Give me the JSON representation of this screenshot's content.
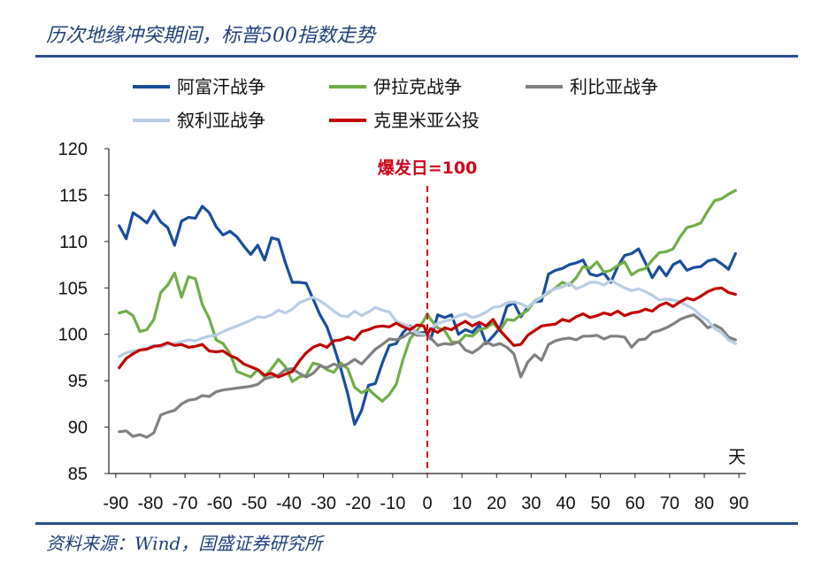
{
  "header": {
    "title": "历次地缘冲突期间，标普500指数走势"
  },
  "footer": {
    "source": "资料来源：Wind，国盛证券研究所"
  },
  "chart_data": {
    "type": "line",
    "title": "历次地缘冲突期间，标普500指数走势",
    "xlabel": "天",
    "ylabel": "",
    "xlim": [
      -92,
      92
    ],
    "ylim": [
      85,
      120
    ],
    "xticks": [
      -90,
      -80,
      -70,
      -60,
      -50,
      -40,
      -30,
      -20,
      -10,
      0,
      10,
      20,
      30,
      40,
      50,
      60,
      70,
      80,
      90
    ],
    "yticks": [
      85,
      90,
      95,
      100,
      105,
      110,
      115,
      120
    ],
    "annotation": {
      "text": "爆发日=100",
      "x": 0
    },
    "legend_position": "top",
    "series": [
      {
        "name": "阿富汗战争",
        "color": "#1a4d9c",
        "x": [
          -89,
          -87,
          -85,
          -83,
          -81,
          -79,
          -77,
          -75,
          -73,
          -71,
          -69,
          -67,
          -65,
          -63,
          -61,
          -59,
          -57,
          -55,
          -53,
          -51,
          -49,
          -47,
          -45,
          -43,
          -41,
          -39,
          -37,
          -35,
          -33,
          -31,
          -29,
          -27,
          -25,
          -23,
          -21,
          -19,
          -17,
          -15,
          -13,
          -11,
          -9,
          -7,
          -5,
          -3,
          -1,
          0,
          1,
          3,
          5,
          7,
          9,
          11,
          13,
          15,
          17,
          19,
          21,
          23,
          25,
          27,
          29,
          31,
          33,
          35,
          37,
          39,
          41,
          43,
          45,
          47,
          49,
          51,
          53,
          55,
          57,
          59,
          61,
          63,
          65,
          67,
          69,
          71,
          73,
          75,
          77,
          79,
          81,
          83,
          85,
          87,
          89
        ],
        "y": [
          111.7,
          110.3,
          113.1,
          112.6,
          112.0,
          113.3,
          112.1,
          111.5,
          109.6,
          112.2,
          112.6,
          112.5,
          113.8,
          113.1,
          111.6,
          110.7,
          111.1,
          110.5,
          109.5,
          108.6,
          109.6,
          108.0,
          110.4,
          110.2,
          107.7,
          105.6,
          105.6,
          105.5,
          103.8,
          102.1,
          100.8,
          98.7,
          96.3,
          93.6,
          90.3,
          91.8,
          94.5,
          94.7,
          96.9,
          98.8,
          99.0,
          100.2,
          100.9,
          100.1,
          100.2,
          100.0,
          99.5,
          102.1,
          101.8,
          102.1,
          100.0,
          100.5,
          100.2,
          101.0,
          99.0,
          99.8,
          100.7,
          103.0,
          103.4,
          101.9,
          102.9,
          103.5,
          103.6,
          106.5,
          106.9,
          107.1,
          107.5,
          107.7,
          108.0,
          106.5,
          106.3,
          106.6,
          105.6,
          107.3,
          108.5,
          108.7,
          109.2,
          107.7,
          106.1,
          107.3,
          106.3,
          107.5,
          107.9,
          106.9,
          107.2,
          107.3,
          107.9,
          108.1,
          107.6,
          107.0,
          108.7
        ]
      },
      {
        "name": "伊拉克战争",
        "color": "#70ad47",
        "x": [
          -89,
          -87,
          -85,
          -83,
          -81,
          -79,
          -77,
          -75,
          -73,
          -71,
          -69,
          -67,
          -65,
          -63,
          -61,
          -59,
          -57,
          -55,
          -53,
          -51,
          -49,
          -47,
          -45,
          -43,
          -41,
          -39,
          -37,
          -35,
          -33,
          -31,
          -29,
          -27,
          -25,
          -23,
          -21,
          -19,
          -17,
          -15,
          -13,
          -11,
          -9,
          -7,
          -5,
          -3,
          -1,
          0,
          1,
          3,
          5,
          7,
          9,
          11,
          13,
          15,
          17,
          19,
          21,
          23,
          25,
          27,
          29,
          31,
          33,
          35,
          37,
          39,
          41,
          43,
          45,
          47,
          49,
          51,
          53,
          55,
          57,
          59,
          61,
          63,
          65,
          67,
          69,
          71,
          73,
          75,
          77,
          79,
          81,
          83,
          85,
          87,
          89
        ],
        "y": [
          102.3,
          102.5,
          102.0,
          100.3,
          100.5,
          101.6,
          104.5,
          105.3,
          106.6,
          104.0,
          106.2,
          106.0,
          103.2,
          101.7,
          99.4,
          99.0,
          97.9,
          96.0,
          95.7,
          95.4,
          96.2,
          95.4,
          96.3,
          97.3,
          96.5,
          94.9,
          95.4,
          95.6,
          96.9,
          96.7,
          96.2,
          95.9,
          96.9,
          96.3,
          94.3,
          93.7,
          94.1,
          93.4,
          92.8,
          93.5,
          94.6,
          97.3,
          99.5,
          100.4,
          101.5,
          102.2,
          101.6,
          100.7,
          100.4,
          99.2,
          99.1,
          99.9,
          99.8,
          100.5,
          100.7,
          101.2,
          100.4,
          101.6,
          101.5,
          102.1,
          102.6,
          103.6,
          104.0,
          104.5,
          105.0,
          105.6,
          105.3,
          106.1,
          107.3,
          107.1,
          107.8,
          106.7,
          106.9,
          107.4,
          107.8,
          106.4,
          106.9,
          107.1,
          108.0,
          108.8,
          108.9,
          109.2,
          110.5,
          111.5,
          111.7,
          112.0,
          113.3,
          114.4,
          114.6,
          115.1,
          115.5
        ]
      },
      {
        "name": "利比亚战争",
        "color": "#808080",
        "x": [
          -89,
          -87,
          -85,
          -83,
          -81,
          -79,
          -77,
          -75,
          -73,
          -71,
          -69,
          -67,
          -65,
          -63,
          -61,
          -59,
          -57,
          -55,
          -53,
          -51,
          -49,
          -47,
          -45,
          -43,
          -41,
          -39,
          -37,
          -35,
          -33,
          -31,
          -29,
          -27,
          -25,
          -23,
          -21,
          -19,
          -17,
          -15,
          -13,
          -11,
          -9,
          -7,
          -5,
          -3,
          -1,
          0,
          1,
          3,
          5,
          7,
          9,
          11,
          13,
          15,
          17,
          19,
          21,
          23,
          25,
          27,
          29,
          31,
          33,
          35,
          37,
          39,
          41,
          43,
          45,
          47,
          49,
          51,
          53,
          55,
          57,
          59,
          61,
          63,
          65,
          67,
          69,
          71,
          73,
          75,
          77,
          79,
          81,
          83,
          85,
          87,
          89
        ],
        "y": [
          89.5,
          89.6,
          89.0,
          89.2,
          88.9,
          89.4,
          91.3,
          91.6,
          91.8,
          92.5,
          92.9,
          93.0,
          93.4,
          93.3,
          93.8,
          94.0,
          94.1,
          94.2,
          94.3,
          94.4,
          94.6,
          95.2,
          95.4,
          95.6,
          96.2,
          96.3,
          95.8,
          95.4,
          95.8,
          96.6,
          96.4,
          96.8,
          96.5,
          96.8,
          97.3,
          96.8,
          97.6,
          98.4,
          98.9,
          99.5,
          99.4,
          99.7,
          100.2,
          99.9,
          99.9,
          100.0,
          99.6,
          98.8,
          99.0,
          98.9,
          99.2,
          98.3,
          98.0,
          98.5,
          99.2,
          98.8,
          99.0,
          98.6,
          97.9,
          95.4,
          97.0,
          97.8,
          97.2,
          98.9,
          99.3,
          99.5,
          99.6,
          99.4,
          99.8,
          99.8,
          99.9,
          99.5,
          99.8,
          99.8,
          99.7,
          98.6,
          99.4,
          99.5,
          100.2,
          100.4,
          100.7,
          101.1,
          101.6,
          101.9,
          102.1,
          101.5,
          100.7,
          101.0,
          100.6,
          99.7,
          99.4
        ]
      },
      {
        "name": "叙利亚战争",
        "color": "#b8cce4",
        "x": [
          -89,
          -87,
          -85,
          -83,
          -81,
          -79,
          -77,
          -75,
          -73,
          -71,
          -69,
          -67,
          -65,
          -63,
          -61,
          -59,
          -57,
          -55,
          -53,
          -51,
          -49,
          -47,
          -45,
          -43,
          -41,
          -39,
          -37,
          -35,
          -33,
          -31,
          -29,
          -27,
          -25,
          -23,
          -21,
          -19,
          -17,
          -15,
          -13,
          -11,
          -9,
          -7,
          -5,
          -3,
          -1,
          0,
          1,
          3,
          5,
          7,
          9,
          11,
          13,
          15,
          17,
          19,
          21,
          23,
          25,
          27,
          29,
          31,
          33,
          35,
          37,
          39,
          41,
          43,
          45,
          47,
          49,
          51,
          53,
          55,
          57,
          59,
          61,
          63,
          65,
          67,
          69,
          71,
          73,
          75,
          77,
          79,
          81,
          83,
          85,
          87,
          89
        ],
        "y": [
          97.6,
          98.0,
          98.2,
          98.3,
          98.5,
          98.8,
          98.6,
          98.9,
          99.0,
          99.2,
          99.4,
          99.3,
          99.6,
          99.8,
          99.9,
          100.3,
          100.6,
          100.9,
          101.2,
          101.5,
          101.9,
          101.8,
          102.1,
          102.6,
          102.3,
          102.7,
          103.4,
          103.7,
          104.0,
          103.6,
          103.1,
          102.5,
          102.0,
          101.9,
          102.5,
          102.0,
          102.4,
          102.9,
          102.6,
          102.4,
          101.4,
          101.1,
          100.8,
          100.1,
          100.0,
          100.0,
          100.6,
          101.2,
          101.4,
          101.6,
          102.0,
          102.2,
          101.8,
          102.0,
          102.4,
          102.9,
          103.0,
          103.4,
          103.5,
          103.3,
          102.9,
          103.5,
          104.0,
          104.6,
          104.9,
          105.1,
          105.5,
          104.9,
          105.2,
          105.6,
          105.6,
          105.3,
          105.8,
          105.4,
          105.0,
          104.7,
          104.9,
          104.6,
          104.2,
          103.7,
          103.8,
          103.7,
          103.5,
          103.1,
          102.7,
          102.0,
          101.5,
          100.6,
          100.2,
          99.4,
          99.0
        ]
      },
      {
        "name": "克里米亚公投",
        "color": "#c00000",
        "x": [
          -89,
          -87,
          -85,
          -83,
          -81,
          -79,
          -77,
          -75,
          -73,
          -71,
          -69,
          -67,
          -65,
          -63,
          -61,
          -59,
          -57,
          -55,
          -53,
          -51,
          -49,
          -47,
          -45,
          -43,
          -41,
          -39,
          -37,
          -35,
          -33,
          -31,
          -29,
          -27,
          -25,
          -23,
          -21,
          -19,
          -17,
          -15,
          -13,
          -11,
          -9,
          -7,
          -5,
          -3,
          -1,
          0,
          1,
          3,
          5,
          7,
          9,
          11,
          13,
          15,
          17,
          19,
          21,
          23,
          25,
          27,
          29,
          31,
          33,
          35,
          37,
          39,
          41,
          43,
          45,
          47,
          49,
          51,
          53,
          55,
          57,
          59,
          61,
          63,
          65,
          67,
          69,
          71,
          73,
          75,
          77,
          79,
          81,
          83,
          85,
          87,
          89
        ],
        "y": [
          96.4,
          97.4,
          97.9,
          98.3,
          98.4,
          98.7,
          98.8,
          99.1,
          98.8,
          98.9,
          98.6,
          98.7,
          98.9,
          98.2,
          98.1,
          98.2,
          97.7,
          97.4,
          96.8,
          96.5,
          96.2,
          95.6,
          95.8,
          95.4,
          95.7,
          96.0,
          97.1,
          98.0,
          98.6,
          98.9,
          98.6,
          99.3,
          99.4,
          99.7,
          99.4,
          100.3,
          100.5,
          100.8,
          100.9,
          100.8,
          101.2,
          100.8,
          100.5,
          101.0,
          100.9,
          100.0,
          100.6,
          100.2,
          100.7,
          100.5,
          101.0,
          101.4,
          100.9,
          101.3,
          100.9,
          101.6,
          100.4,
          99.6,
          98.8,
          98.9,
          99.9,
          100.4,
          100.9,
          101.0,
          101.1,
          101.6,
          101.4,
          101.9,
          102.2,
          101.8,
          102.0,
          102.3,
          102.1,
          102.5,
          102.0,
          102.3,
          102.4,
          102.7,
          102.5,
          103.1,
          103.4,
          103.0,
          103.5,
          103.9,
          103.7,
          104.1,
          104.6,
          104.9,
          105.0,
          104.5,
          104.3
        ]
      }
    ]
  }
}
